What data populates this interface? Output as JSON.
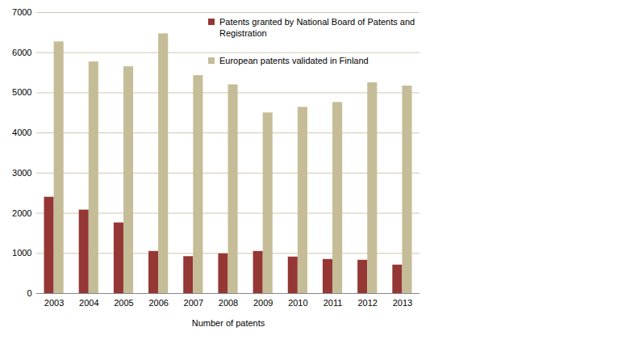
{
  "chart_data": {
    "type": "bar",
    "x_label": "Number of patents",
    "categories": [
      "2003",
      "2004",
      "2005",
      "2006",
      "2007",
      "2008",
      "2009",
      "2010",
      "2011",
      "2012",
      "2013"
    ],
    "series": [
      {
        "name": "Patents granted by National Board of Patents and Registration",
        "color": "#953735",
        "values": [
          2400,
          2080,
          1760,
          1050,
          920,
          990,
          1050,
          910,
          850,
          830,
          710
        ]
      },
      {
        "name": "European patents validated in Finland",
        "color": "#c4bd97",
        "values": [
          6270,
          5770,
          5650,
          6470,
          5430,
          5200,
          4500,
          4640,
          4760,
          5250,
          5170
        ]
      }
    ],
    "ylim": [
      0,
      7000
    ],
    "yticks": [
      0,
      1000,
      2000,
      3000,
      4000,
      5000,
      6000,
      7000
    ],
    "grid": true,
    "legend": "top"
  }
}
